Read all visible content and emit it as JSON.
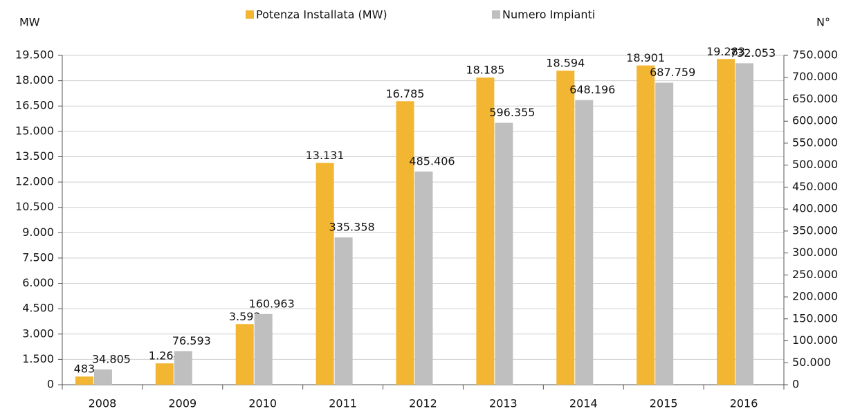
{
  "chart_data": {
    "type": "bar",
    "y_label": "MW",
    "y2_label": "N°",
    "categories": [
      "2008",
      "2009",
      "2010",
      "2011",
      "2012",
      "2013",
      "2014",
      "2015",
      "2016"
    ],
    "series": [
      {
        "name": "Potenza Installata (MW)",
        "color": "#f2b632",
        "axis": "y",
        "values": [
          483,
          1264,
          3592,
          13131,
          16785,
          18185,
          18594,
          18901,
          19283
        ],
        "value_labels": [
          "483",
          "1.264",
          "3.592",
          "13.131",
          "16.785",
          "18.185",
          "18.594",
          "18.901",
          "19.283"
        ]
      },
      {
        "name": "Numero Impianti",
        "color": "#bfbfbf",
        "axis": "y2",
        "values": [
          34805,
          76593,
          160963,
          335358,
          485406,
          596355,
          648196,
          687759,
          732053
        ],
        "value_labels": [
          "34.805",
          "76.593",
          "160.963",
          "335.358",
          "485.406",
          "596.355",
          "648.196",
          "687.759",
          "732.053"
        ]
      }
    ],
    "ylim": [
      0,
      19500
    ],
    "yticks": [
      0,
      {
        "value": 1500,
        "label": "1.500"
      },
      {
        "value": 3000,
        "label": "3.000"
      },
      {
        "value": 4500,
        "label": "4.500"
      },
      {
        "value": 6000,
        "label": "6.000"
      },
      {
        "value": 7500,
        "label": "7.500"
      },
      {
        "value": 9000,
        "label": "9.000"
      },
      {
        "value": 10500,
        "label": "10.500"
      },
      {
        "value": 12000,
        "label": "12.000"
      },
      {
        "value": 13500,
        "label": "13.500"
      },
      {
        "value": 15000,
        "label": "15.000"
      },
      {
        "value": 16500,
        "label": "16.500"
      },
      {
        "value": 18000,
        "label": "18.000"
      },
      {
        "value": 19500,
        "label": "19.500"
      }
    ],
    "y2lim": [
      0,
      750000
    ],
    "y2ticks": [
      0,
      {
        "value": 50000,
        "label": "50.000"
      },
      {
        "value": 100000,
        "label": "100.000"
      },
      {
        "value": 150000,
        "label": "150.000"
      },
      {
        "value": 200000,
        "label": "200.000"
      },
      {
        "value": 250000,
        "label": "250.000"
      },
      {
        "value": 300000,
        "label": "300.000"
      },
      {
        "value": 350000,
        "label": "350.000"
      },
      {
        "value": 400000,
        "label": "400.000"
      },
      {
        "value": 450000,
        "label": "450.000"
      },
      {
        "value": 500000,
        "label": "500.000"
      },
      {
        "value": 550000,
        "label": "550.000"
      },
      {
        "value": 600000,
        "label": "600.000"
      },
      {
        "value": 650000,
        "label": "650.000"
      },
      {
        "value": 700000,
        "label": "700.000"
      },
      {
        "value": 750000,
        "label": "750.000"
      }
    ],
    "grid": true
  }
}
